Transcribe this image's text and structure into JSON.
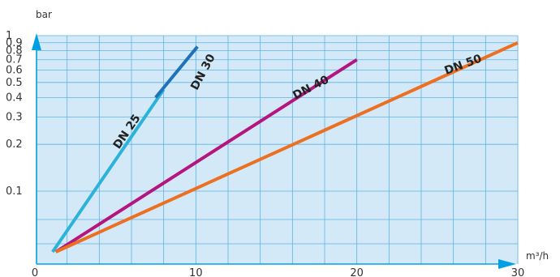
{
  "chart_data": {
    "type": "line",
    "title": "",
    "xlabel": "m³/h",
    "ylabel": "bar",
    "xlim": [
      0,
      30
    ],
    "y_scale": "log",
    "x_ticks": [
      {
        "value": 0,
        "label": "0"
      },
      {
        "value": 10,
        "label": "10"
      },
      {
        "value": 20,
        "label": "20"
      },
      {
        "value": 30,
        "label": "30"
      }
    ],
    "y_ticks": [
      {
        "value": 0.1,
        "label": "0.1"
      },
      {
        "value": 0.2,
        "label": "0.2"
      },
      {
        "value": 0.3,
        "label": "0.3"
      },
      {
        "value": 0.4,
        "label": "0.4"
      },
      {
        "value": 0.5,
        "label": "0.5"
      },
      {
        "value": 0.6,
        "label": "0.6"
      },
      {
        "value": 0.7,
        "label": "0.7"
      },
      {
        "value": 0.8,
        "label": "0.8"
      },
      {
        "value": 0.9,
        "label": "0.9"
      },
      {
        "value": 1,
        "label": "1"
      }
    ],
    "grid": true,
    "legend": "none",
    "colors": {
      "plot_background": "#d4e9f7",
      "grid": "#5db3e6",
      "axis": "#009fe3"
    },
    "series": [
      {
        "name": "DN 25",
        "color": "#2bb3d9",
        "x": [
          1.1,
          8.0
        ],
        "y": [
          0.005,
          0.45
        ]
      },
      {
        "name": "DN 30",
        "color": "#1f73b8",
        "x": [
          7.5,
          10.1
        ],
        "y": [
          0.4,
          0.85
        ]
      },
      {
        "name": "DN 40",
        "color": "#b4157e",
        "x": [
          1.3,
          20.0
        ],
        "y": [
          0.005,
          0.7
        ]
      },
      {
        "name": "DN 50",
        "color": "#ec7022",
        "x": [
          1.3,
          30.0
        ],
        "y": [
          0.005,
          0.9
        ]
      }
    ]
  }
}
